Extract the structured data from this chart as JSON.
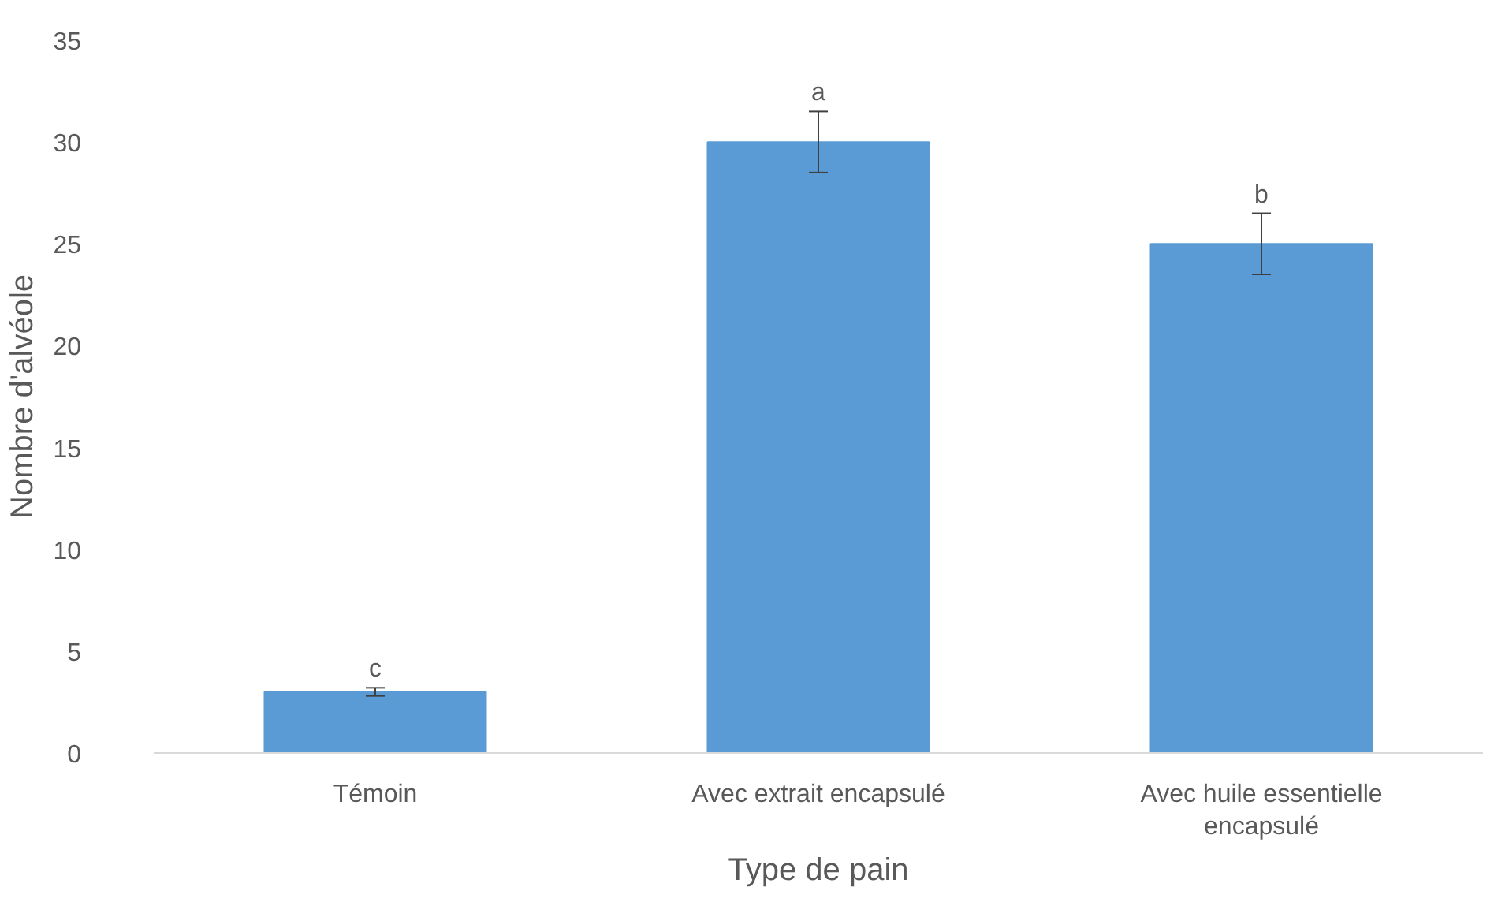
{
  "chart_data": {
    "type": "bar",
    "xlabel": "Type de pain",
    "ylabel": "Nombre d'alvéole",
    "categories": [
      "Témoin",
      "Avec extrait encapsulé",
      "Avec huile essentielle encapsulé"
    ],
    "values": [
      3,
      30,
      25
    ],
    "color": "#5b9bd5",
    "errors": [
      0.2,
      1.5,
      1.5
    ],
    "ylim": [
      0,
      35
    ],
    "yticks": [
      0,
      5,
      10,
      15,
      20,
      25,
      30,
      35
    ],
    "grid": false,
    "annotations": [
      "c",
      "a",
      "b"
    ]
  }
}
